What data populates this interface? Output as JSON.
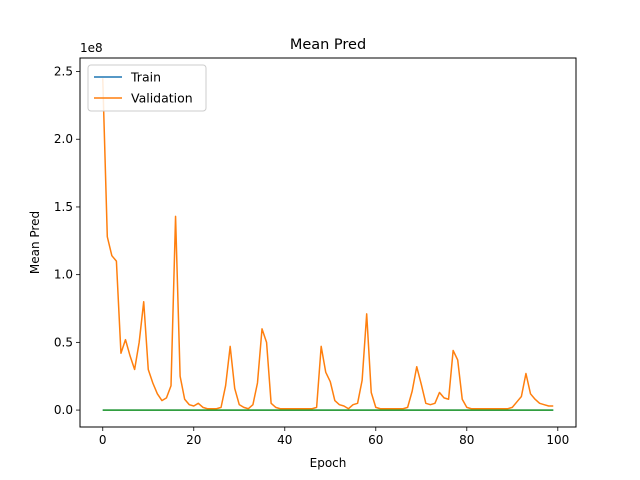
{
  "chart_data": {
    "type": "line",
    "title": "Mean Pred",
    "xlabel": "Epoch",
    "ylabel": "Mean Pred",
    "y_scale_label": "1e8",
    "xlim": [
      -5.0,
      104.0
    ],
    "ylim": [
      -0.125,
      2.6
    ],
    "x_ticks": [
      0,
      20,
      40,
      60,
      80,
      100
    ],
    "y_ticks": [
      0.0,
      0.5,
      1.0,
      1.5,
      2.0,
      2.5
    ],
    "x_tick_labels": [
      "0",
      "20",
      "40",
      "60",
      "80",
      "100"
    ],
    "y_tick_labels": [
      "0.0",
      "0.5",
      "1.0",
      "1.5",
      "2.0",
      "2.5"
    ],
    "grid": false,
    "legend_position": "top-left",
    "legend": [
      "Train",
      "Validation"
    ],
    "colors": {
      "train": "#1f77b4",
      "validation": "#ff7f0e",
      "baseline": "#2ca02c",
      "axes": "#000000"
    },
    "series": [
      {
        "name": "Train",
        "color": "#1f77b4",
        "in_legend": true,
        "x": [
          0,
          99
        ],
        "values": [
          0.0,
          0.0
        ]
      },
      {
        "name": "Validation",
        "color": "#ff7f0e",
        "in_legend": true,
        "x": [
          0,
          1,
          2,
          3,
          4,
          5,
          6,
          7,
          8,
          9,
          10,
          11,
          12,
          13,
          14,
          15,
          16,
          17,
          18,
          19,
          20,
          21,
          22,
          23,
          24,
          25,
          26,
          27,
          28,
          29,
          30,
          31,
          32,
          33,
          34,
          35,
          36,
          37,
          38,
          39,
          40,
          41,
          42,
          43,
          44,
          45,
          46,
          47,
          48,
          49,
          50,
          51,
          52,
          53,
          54,
          55,
          56,
          57,
          58,
          59,
          60,
          61,
          62,
          63,
          64,
          65,
          66,
          67,
          68,
          69,
          70,
          71,
          72,
          73,
          74,
          75,
          76,
          77,
          78,
          79,
          80,
          81,
          82,
          83,
          84,
          85,
          86,
          87,
          88,
          89,
          90,
          91,
          92,
          93,
          94,
          95,
          96,
          97,
          98,
          99
        ],
        "values": [
          2.45,
          1.28,
          1.14,
          1.1,
          0.42,
          0.52,
          0.4,
          0.3,
          0.5,
          0.8,
          0.3,
          0.2,
          0.12,
          0.07,
          0.09,
          0.18,
          1.43,
          0.25,
          0.08,
          0.04,
          0.03,
          0.05,
          0.02,
          0.01,
          0.01,
          0.01,
          0.02,
          0.18,
          0.47,
          0.16,
          0.04,
          0.02,
          0.01,
          0.04,
          0.2,
          0.6,
          0.5,
          0.05,
          0.02,
          0.01,
          0.01,
          0.01,
          0.01,
          0.01,
          0.01,
          0.01,
          0.01,
          0.02,
          0.47,
          0.28,
          0.21,
          0.07,
          0.04,
          0.03,
          0.01,
          0.04,
          0.05,
          0.22,
          0.71,
          0.13,
          0.02,
          0.01,
          0.01,
          0.01,
          0.01,
          0.01,
          0.01,
          0.02,
          0.14,
          0.32,
          0.19,
          0.05,
          0.04,
          0.05,
          0.13,
          0.09,
          0.08,
          0.44,
          0.37,
          0.08,
          0.02,
          0.01,
          0.01,
          0.01,
          0.01,
          0.01,
          0.01,
          0.01,
          0.01,
          0.01,
          0.02,
          0.06,
          0.1,
          0.27,
          0.12,
          0.08,
          0.05,
          0.04,
          0.03,
          0.03
        ]
      },
      {
        "name": "",
        "color": "#2ca02c",
        "in_legend": false,
        "x": [
          0,
          99
        ],
        "values": [
          0.0,
          0.0
        ]
      }
    ]
  }
}
